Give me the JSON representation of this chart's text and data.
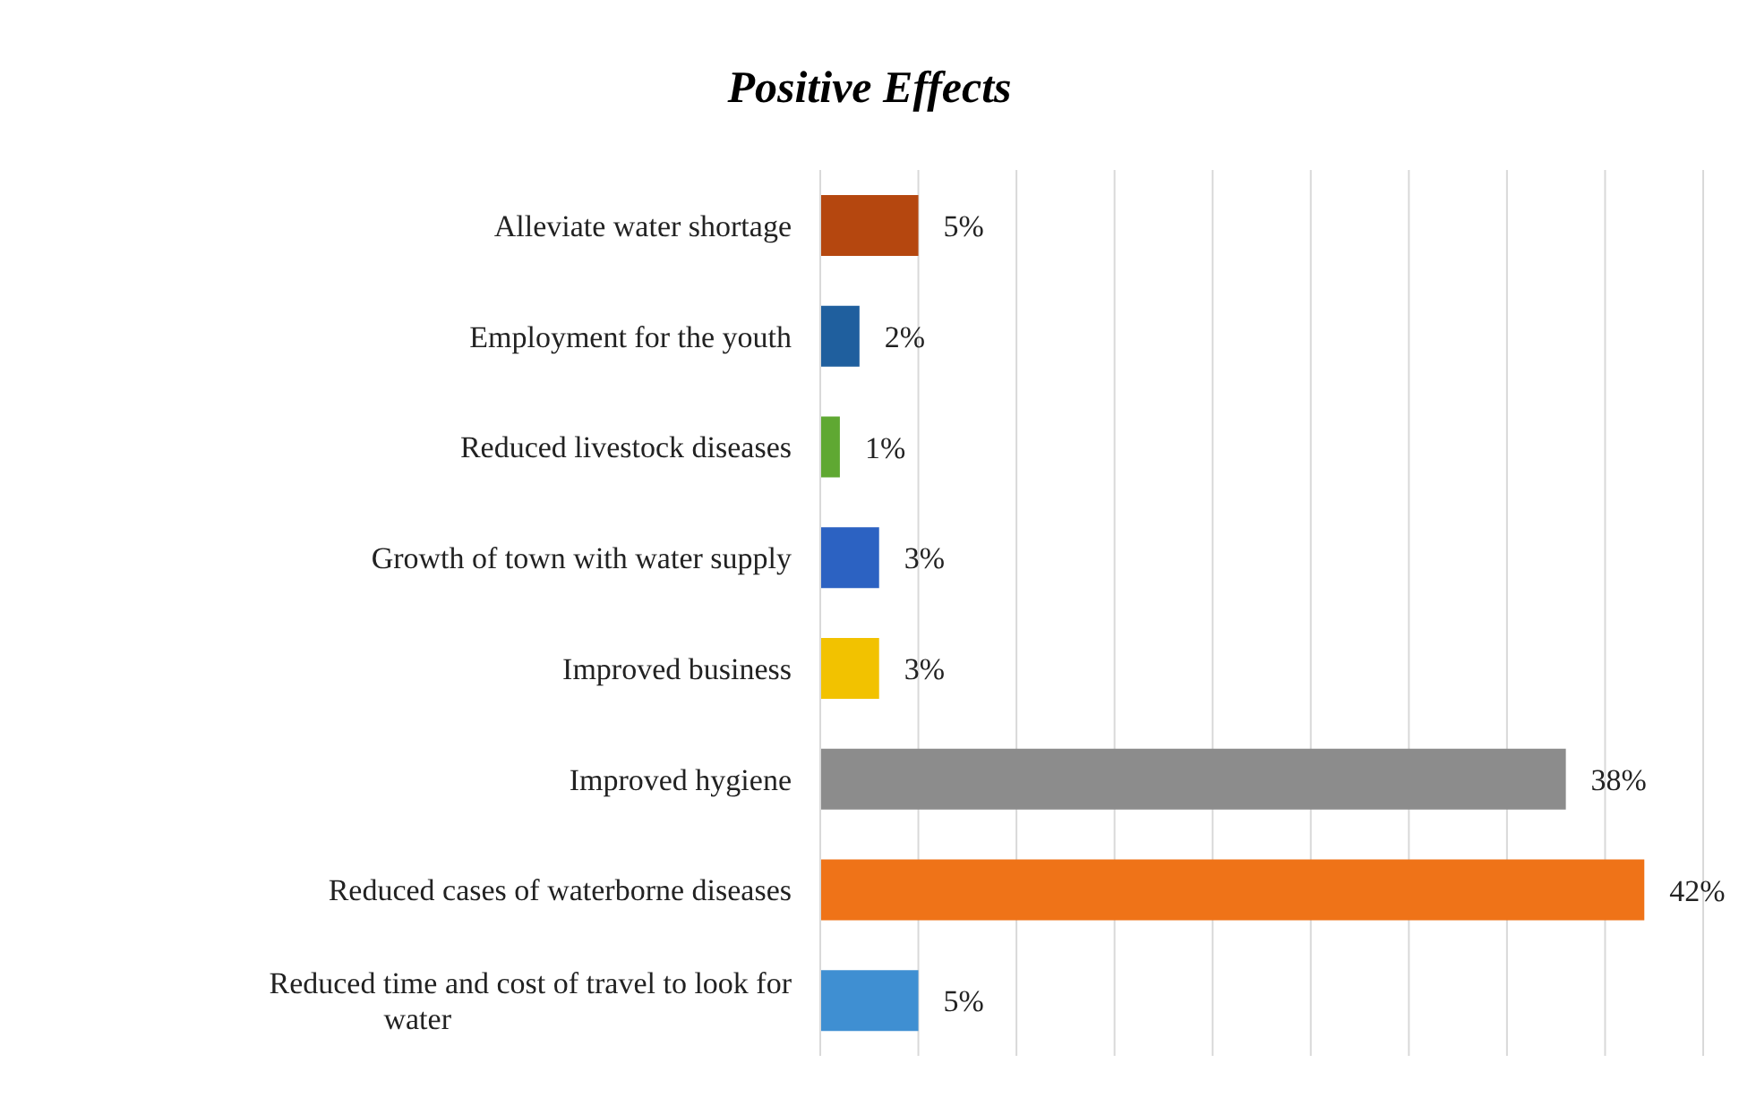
{
  "chart_data": {
    "type": "bar",
    "orientation": "horizontal",
    "title": "Positive Effects",
    "categories": [
      "Alleviate water shortage",
      "Employment for the youth",
      "Reduced livestock diseases",
      "Growth of town with water supply",
      "Improved business",
      "Improved hygiene",
      "Reduced cases of waterborne diseases",
      "Reduced time and cost of travel to look for water"
    ],
    "values": [
      5,
      2,
      1,
      3,
      3,
      38,
      42,
      5
    ],
    "value_labels": [
      "5%",
      "2%",
      "1%",
      "3%",
      "3%",
      "38%",
      "42%",
      "5%"
    ],
    "colors": [
      "#b5470f",
      "#1f5f9e",
      "#5fa832",
      "#2c62c2",
      "#f2c200",
      "#8c8c8c",
      "#ef7318",
      "#3f8fd2"
    ],
    "xlim": [
      0,
      45
    ],
    "xticks": [
      {
        "value": 0,
        "label": null
      },
      {
        "value": 5,
        "label": null
      },
      {
        "value": 10,
        "label": null
      },
      {
        "value": 15,
        "label": null
      },
      {
        "value": 20,
        "label": null
      },
      {
        "value": 25,
        "label": null
      },
      {
        "value": 30,
        "label": null
      },
      {
        "value": 35,
        "label": null
      },
      {
        "value": 40,
        "label": null
      },
      {
        "value": 45,
        "label": null
      }
    ],
    "tick_labels": "y",
    "grid": "x"
  }
}
